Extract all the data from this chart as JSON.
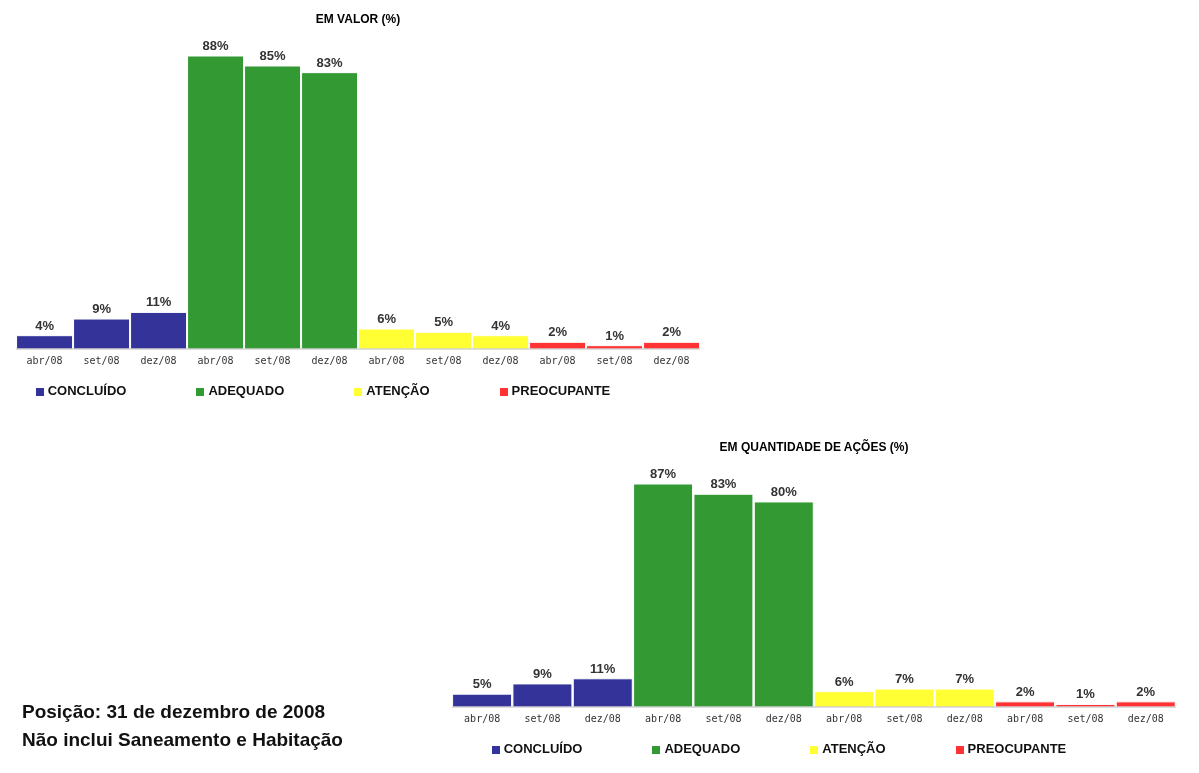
{
  "chart_data": [
    {
      "type": "bar",
      "title": "EM VALOR (%)",
      "categories": [
        "abr/08",
        "set/08",
        "dez/08",
        "abr/08",
        "set/08",
        "dez/08",
        "abr/08",
        "set/08",
        "dez/08",
        "abr/08",
        "set/08",
        "dez/08"
      ],
      "stacked": true,
      "legend": "bottom",
      "series": [
        {
          "name": "CONCLUÍDO",
          "color": "#333399",
          "values": [
            4,
            9,
            11,
            null,
            null,
            null,
            null,
            null,
            null,
            null,
            null,
            null
          ],
          "value_labels": [
            "4%",
            "9%",
            "11%",
            null,
            null,
            null,
            null,
            null,
            null,
            null,
            null,
            null
          ]
        },
        {
          "name": "ADEQUADO",
          "color": "#339933",
          "values": [
            null,
            null,
            null,
            88,
            85,
            83,
            null,
            null,
            null,
            null,
            null,
            null
          ],
          "value_labels": [
            null,
            null,
            null,
            "88%",
            "85%",
            "83%",
            null,
            null,
            null,
            null,
            null,
            null
          ]
        },
        {
          "name": "ATENÇÃO",
          "color": "#ffff33",
          "values": [
            null,
            null,
            null,
            null,
            null,
            null,
            6,
            5,
            4,
            null,
            null,
            null
          ],
          "value_labels": [
            null,
            null,
            null,
            null,
            null,
            null,
            "6%",
            "5%",
            "4%",
            null,
            null,
            null
          ]
        },
        {
          "name": "PREOCUPANTE",
          "color": "#ff3333",
          "values": [
            null,
            null,
            null,
            null,
            null,
            null,
            null,
            null,
            null,
            2,
            1,
            2
          ],
          "value_labels": [
            null,
            null,
            null,
            null,
            null,
            null,
            null,
            null,
            null,
            "2%",
            "1%",
            "2%"
          ]
        }
      ]
    },
    {
      "type": "bar",
      "title": "EM QUANTIDADE DE AÇÕES (%)",
      "categories": [
        "abr/08",
        "set/08",
        "dez/08",
        "abr/08",
        "set/08",
        "dez/08",
        "abr/08",
        "set/08",
        "dez/08",
        "abr/08",
        "set/08",
        "dez/08"
      ],
      "stacked": true,
      "legend": "bottom",
      "annotations": [
        "Posição: 31 de dezembro de 2008",
        "Não inclui Saneamento e Habitação"
      ],
      "series": [
        {
          "name": "CONCLUÍDO",
          "color": "#333399",
          "values": [
            5,
            9,
            11,
            null,
            null,
            null,
            null,
            null,
            null,
            null,
            null,
            null
          ],
          "value_labels": [
            "5%",
            "9%",
            "11%",
            null,
            null,
            null,
            null,
            null,
            null,
            null,
            null,
            null
          ]
        },
        {
          "name": "ADEQUADO",
          "color": "#339933",
          "values": [
            null,
            null,
            null,
            87,
            83,
            80,
            null,
            null,
            null,
            null,
            null,
            null
          ],
          "value_labels": [
            null,
            null,
            null,
            "87%",
            "83%",
            "80%",
            null,
            null,
            null,
            null,
            null,
            null
          ]
        },
        {
          "name": "ATENÇÃO",
          "color": "#ffff33",
          "values": [
            null,
            null,
            null,
            null,
            null,
            null,
            6,
            7,
            7,
            null,
            null,
            null
          ],
          "value_labels": [
            null,
            null,
            null,
            null,
            null,
            null,
            "6%",
            "7%",
            "7%",
            null,
            null,
            null
          ]
        },
        {
          "name": "PREOCUPANTE",
          "color": "#ff3333",
          "values": [
            null,
            null,
            null,
            null,
            null,
            null,
            null,
            null,
            null,
            2,
            1,
            2
          ],
          "value_labels": [
            null,
            null,
            null,
            null,
            null,
            null,
            null,
            null,
            null,
            "2%",
            "1%",
            "2%"
          ]
        }
      ]
    }
  ]
}
